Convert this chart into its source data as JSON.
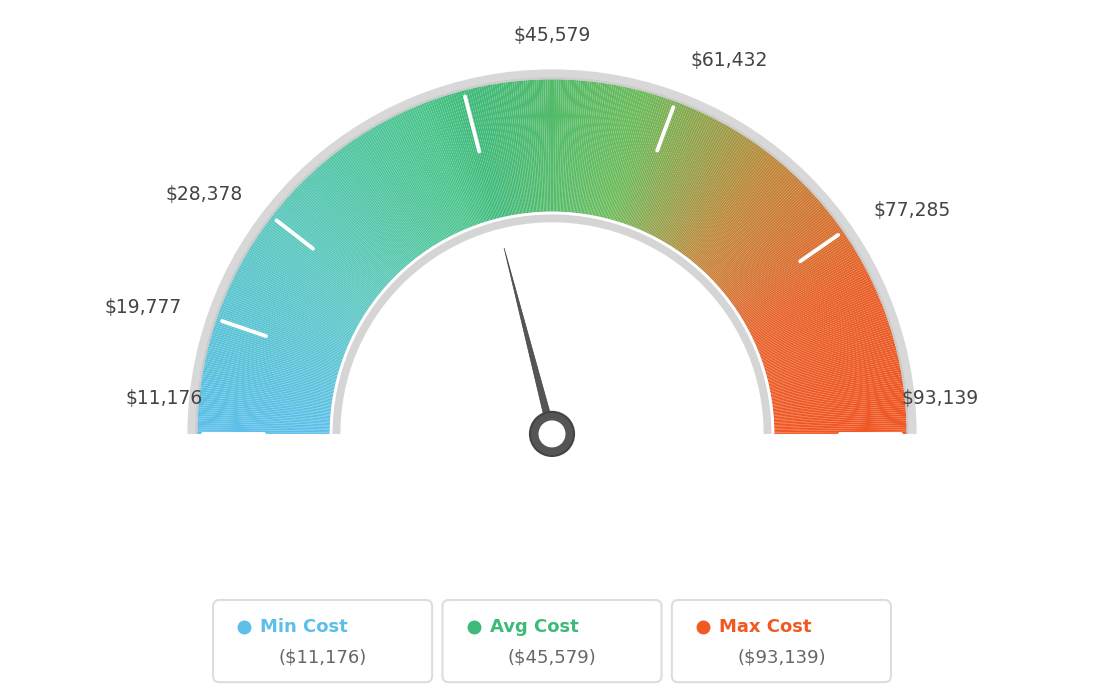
{
  "min_val": 11176,
  "max_val": 93139,
  "avg_val": 45579,
  "labels": [
    "$11,176",
    "$19,777",
    "$28,378",
    "$45,579",
    "$61,432",
    "$77,285",
    "$93,139"
  ],
  "label_values": [
    11176,
    19777,
    28378,
    45579,
    61432,
    77285,
    93139
  ],
  "color_min": "#5BBFEA",
  "color_avg": "#3DBA7A",
  "color_max": "#F05A22",
  "background_color": "#ffffff",
  "needle_color": "#555555",
  "legend_min_label": "Min Cost",
  "legend_avg_label": "Avg Cost",
  "legend_max_label": "Max Cost",
  "legend_min_value": "($11,176)",
  "legend_avg_value": "($45,579)",
  "legend_max_value": "($93,139)",
  "tick_color": "#ffffff",
  "border_color": "#cccccc",
  "outer_r": 1.0,
  "inner_r": 0.62,
  "gap_r": 0.6
}
